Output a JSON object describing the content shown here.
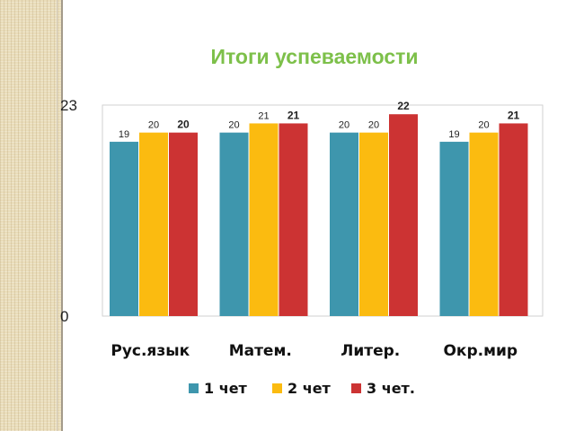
{
  "chart_data": {
    "type": "bar",
    "title": "Итоги успеваемости",
    "categories": [
      "Рус.язык",
      "Матем.",
      "Литер.",
      "Окр.мир"
    ],
    "series": [
      {
        "name": "1 чет",
        "color": "#3e96ad",
        "values": [
          19,
          20,
          20,
          19
        ]
      },
      {
        "name": "2 чет",
        "color": "#fbbb10",
        "values": [
          20,
          21,
          20,
          20
        ]
      },
      {
        "name": "3 чет.",
        "color": "#cc3333",
        "values": [
          20,
          21,
          22,
          21
        ]
      }
    ],
    "ylim": [
      0,
      23
    ],
    "yticks": [
      "0",
      "23"
    ],
    "grid": false,
    "legend": "bottom",
    "label_styles": [
      [
        "normal",
        "normal",
        "bold"
      ],
      [
        "normal",
        "normal",
        "bold"
      ],
      [
        "normal",
        "normal",
        "bold"
      ],
      [
        "normal",
        "normal",
        "bold"
      ]
    ]
  }
}
